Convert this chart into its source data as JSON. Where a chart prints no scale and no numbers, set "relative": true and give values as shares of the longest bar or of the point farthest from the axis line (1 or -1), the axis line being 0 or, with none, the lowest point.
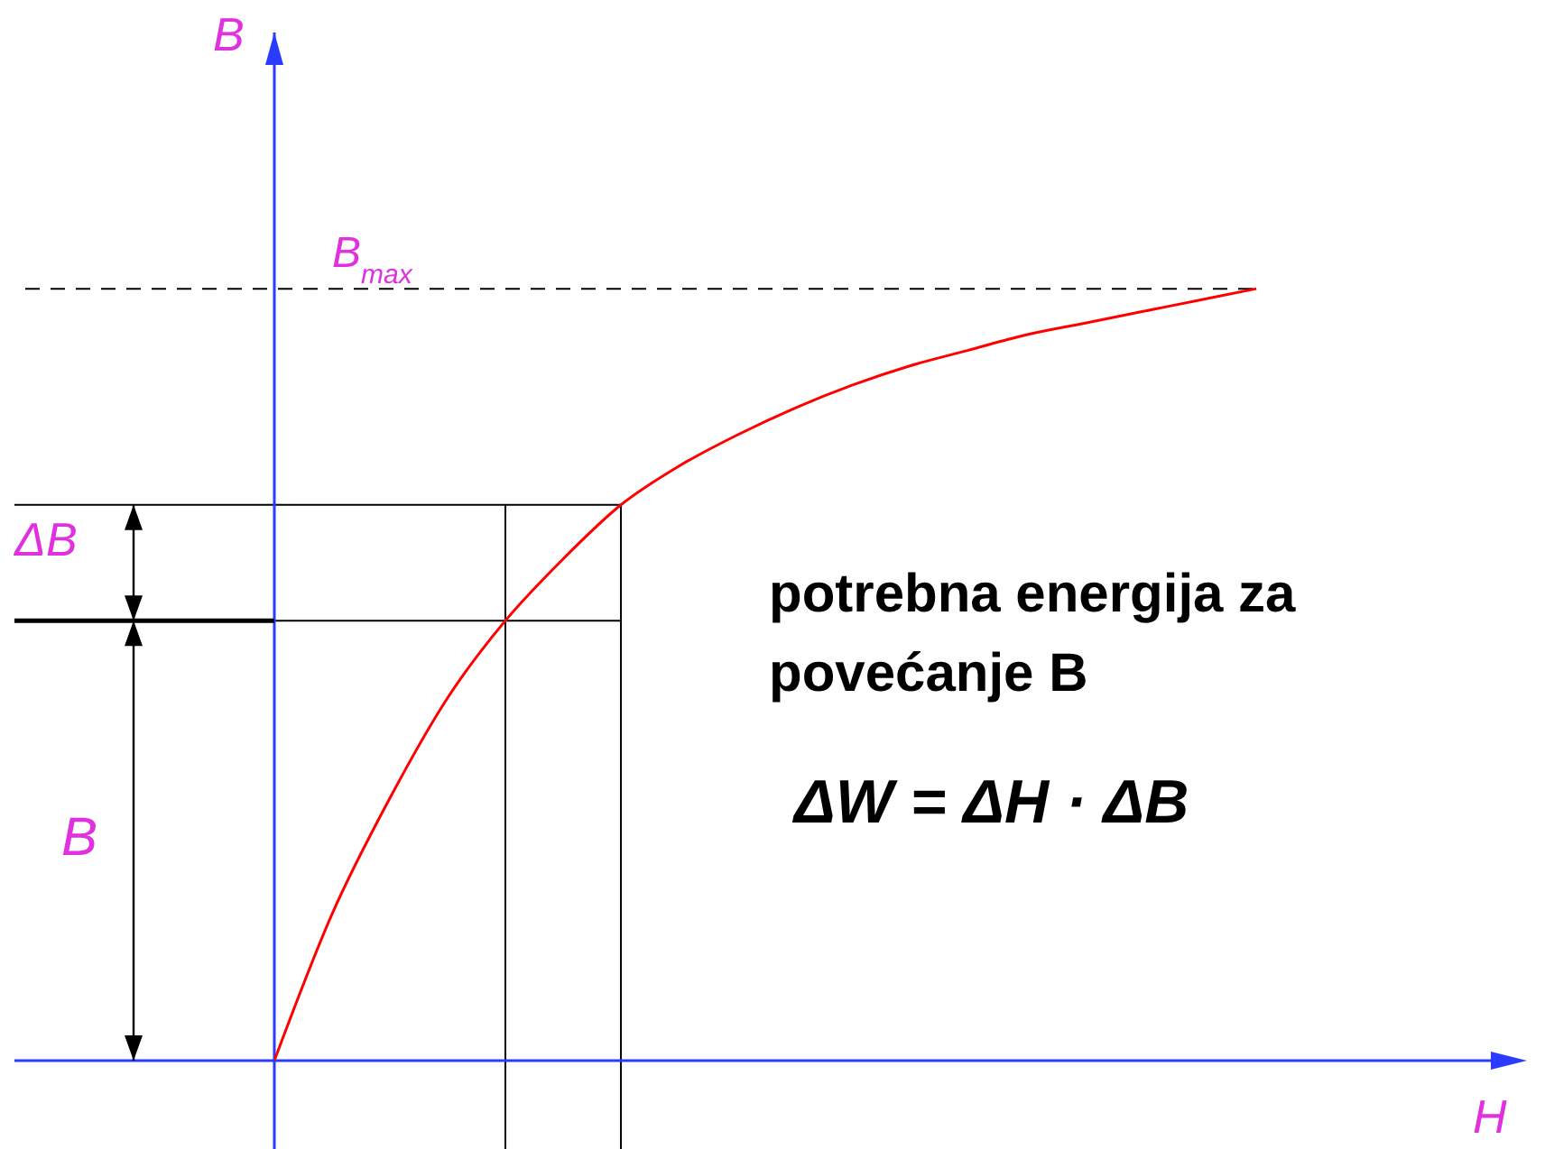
{
  "chart_data": {
    "type": "line",
    "relative": true,
    "xlabel": "H",
    "ylabel": "B",
    "marker": "none",
    "categories": [
      null,
      null,
      null,
      null,
      null,
      null,
      null,
      null,
      null,
      null,
      null,
      null,
      null,
      null,
      null,
      null,
      null,
      null
    ],
    "series": [
      {
        "color": "#ff0000",
        "values": [
          0,
          0.19,
          0.34,
          0.47,
          0.57,
          0.65,
          0.72,
          0.77,
          0.81,
          0.845,
          0.875,
          0.9,
          0.92,
          0.94,
          0.955,
          0.97,
          0.985,
          1
        ]
      }
    ],
    "ref_lines": [
      {
        "axis": "y",
        "value": 1,
        "label": "B$_{max}$",
        "line_style": "dashed",
        "color": "#000000"
      },
      {
        "axis": "y",
        "value": 0.72,
        "color": "#000000"
      },
      {
        "axis": "y",
        "value": 0.57,
        "color": "#000000"
      }
    ],
    "annotations": [
      "ΔB",
      "B",
      "potrebna energija za povećanje B",
      "ΔW = ΔH · ΔB"
    ]
  }
}
